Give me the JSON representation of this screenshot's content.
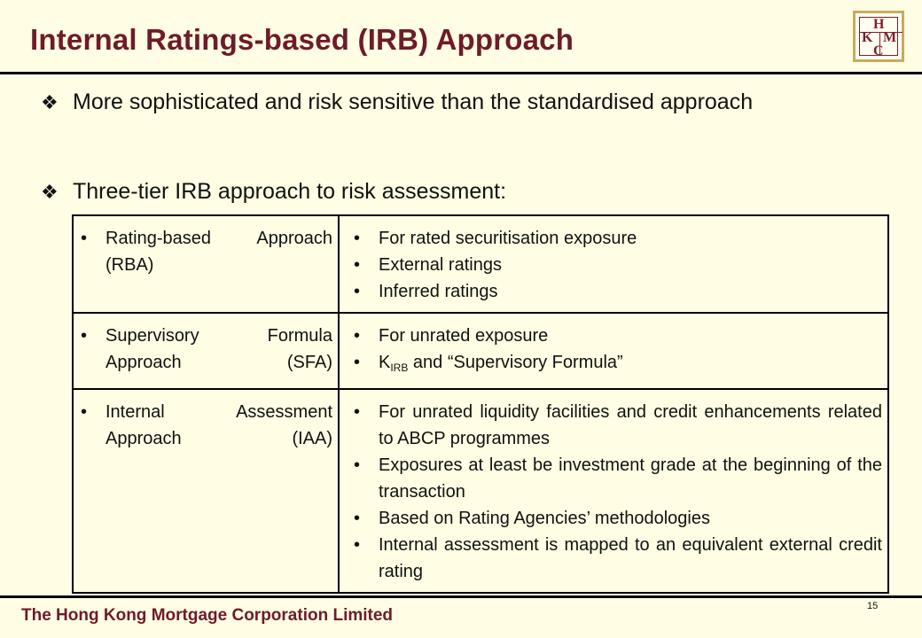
{
  "header": {
    "title": "Internal Ratings-based (IRB) Approach",
    "logo": {
      "h": "H",
      "k": "K",
      "m": "M",
      "c": "C"
    }
  },
  "bullets": [
    {
      "marker": "❖",
      "text": "More sophisticated and risk sensitive than the standardised approach"
    },
    {
      "marker": "❖",
      "text": "Three-tier IRB approach to risk assessment:"
    }
  ],
  "table": {
    "rows": [
      {
        "approach": "Rating-based Approach (RBA)",
        "details": [
          "For rated securitisation exposure",
          "External ratings",
          "Inferred ratings"
        ]
      },
      {
        "approach": "Supervisory Formula Approach (SFA)",
        "details": [
          "For unrated exposure",
          "K",
          "IRB",
          "and “Supervisory Formula”"
        ]
      },
      {
        "approach": "Internal Assessment Approach (IAA)",
        "details": [
          "For unrated liquidity facilities and credit enhancements related to ABCP programmes",
          "Exposures at least be investment grade at the beginning of the transaction",
          "Based on Rating Agencies’ methodologies",
          "Internal assessment is mapped to an equivalent external credit rating"
        ]
      }
    ],
    "bullet_char": "•"
  },
  "footer": {
    "company": "The Hong Kong Mortgage Corporation Limited",
    "page_number": "15"
  },
  "colors": {
    "title": "#6e1b2a",
    "background": "#fffde3",
    "logo_border": "#c8ab5e"
  }
}
